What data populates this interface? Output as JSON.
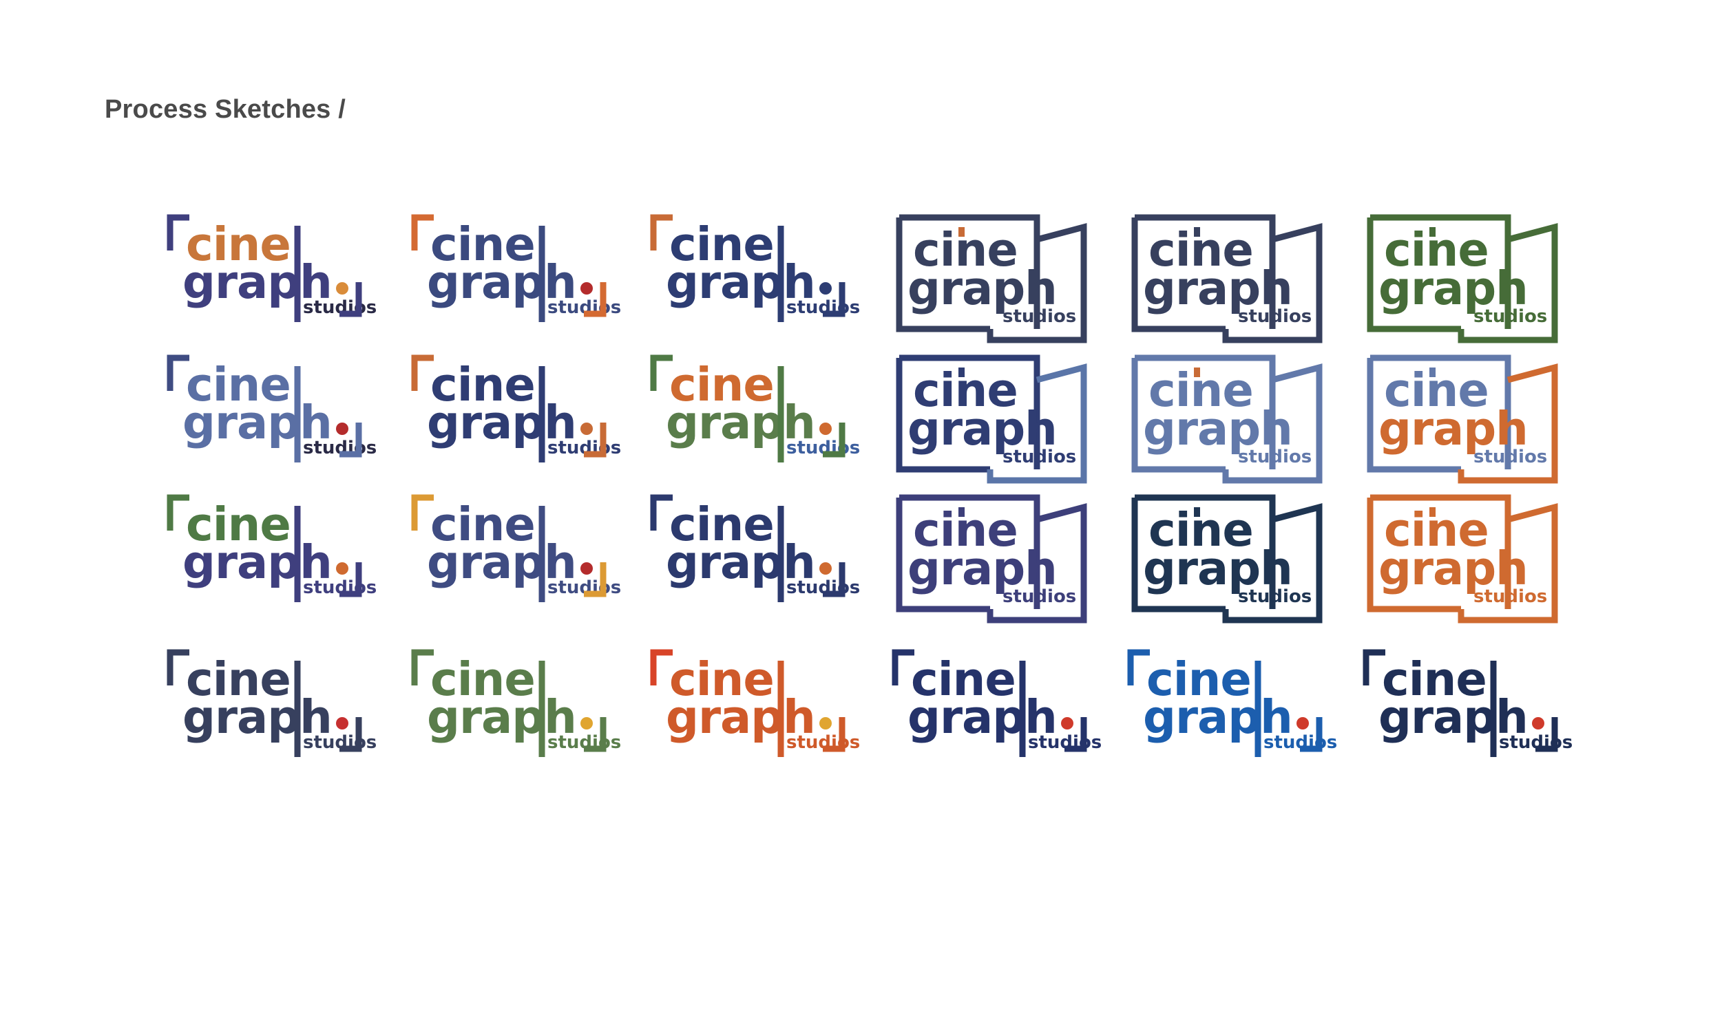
{
  "heading": "Process Sketches /",
  "logo_text": {
    "line1": "cine",
    "line2": "graph",
    "line3": "studios"
  },
  "rows": [
    [
      {
        "style": "bracket",
        "cine": "#c8763a",
        "graph": "#3f3f7e",
        "studios": "#2a2a46",
        "corner": "#3f3f7e",
        "bar": "#3f3f7e",
        "dot": "#d98c3a",
        "accent": "#3f3f7e"
      },
      {
        "style": "bracket",
        "cine": "#3b4a7f",
        "graph": "#3b4a7f",
        "studios": "#3b4a7f",
        "corner": "#d46a32",
        "bar": "#3b4a7f",
        "dot": "#b42c2c",
        "accent": "#d46a32"
      },
      {
        "style": "bracket",
        "cine": "#2d3d73",
        "graph": "#2d3d73",
        "studios": "#2d3d73",
        "corner": "#c86b36",
        "bar": "#2d3d73",
        "dot": "#2d3d73",
        "accent": "#2d3d73"
      },
      {
        "style": "box",
        "cine": "#37405e",
        "graph": "#37405e",
        "studios": "#37405e",
        "box": "#37405e",
        "tab": "#37405e",
        "ibar": "#c86b36"
      },
      {
        "style": "box",
        "cine": "#37405e",
        "graph": "#37405e",
        "studios": "#37405e",
        "box": "#37405e",
        "tab": "#37405e",
        "ibar": "#37405e"
      },
      {
        "style": "box",
        "cine": "#466c38",
        "graph": "#466c38",
        "studios": "#466c38",
        "box": "#466c38",
        "tab": "#466c38",
        "ibar": "#466c38"
      }
    ],
    [
      {
        "style": "bracket",
        "cine": "#5a6fa4",
        "graph": "#5a6fa4",
        "studios": "#2a2a46",
        "corner": "#3f4c82",
        "bar": "#5a6fa4",
        "dot": "#b42c2c",
        "accent": "#5a6fa4"
      },
      {
        "style": "bracket",
        "cine": "#2f3d73",
        "graph": "#2f3d73",
        "studios": "#2f3d73",
        "corner": "#c86b36",
        "bar": "#2f3d73",
        "dot": "#c86b36",
        "accent": "#c86b36"
      },
      {
        "style": "bracket",
        "cine": "#cf6a30",
        "graph": "#5a7d4b",
        "studios": "#3d5f9e",
        "corner": "#4f7a45",
        "bar": "#4f7a45",
        "dot": "#cf6a30",
        "accent": "#4f7a45"
      },
      {
        "style": "box",
        "cine": "#2f3d73",
        "graph": "#2f3d73",
        "studios": "#2f3d73",
        "box": "#2f3d73",
        "tab": "#5a75a8",
        "ibar": "#2f3d73"
      },
      {
        "style": "box",
        "cine": "#6279aa",
        "graph": "#6279aa",
        "studios": "#6279aa",
        "box": "#6279aa",
        "tab": "#6279aa",
        "ibar": "#c86b36"
      },
      {
        "style": "box",
        "cine": "#6279aa",
        "graph": "#cf6a30",
        "studios": "#6279aa",
        "box": "#6279aa",
        "tab": "#cf6a30",
        "ibar": "#6279aa"
      }
    ],
    [
      {
        "style": "bracket",
        "cine": "#4f7a45",
        "graph": "#3f3f7e",
        "studios": "#3f3f7e",
        "corner": "#4f7a45",
        "bar": "#3f3f7e",
        "dot": "#cf6a30",
        "accent": "#3f3f7e"
      },
      {
        "style": "bracket",
        "cine": "#3f4c82",
        "graph": "#3f4c82",
        "studios": "#3f4c82",
        "corner": "#dc9a34",
        "bar": "#3f4c82",
        "dot": "#b42c2c",
        "accent": "#dc9a34"
      },
      {
        "style": "bracket",
        "cine": "#2c3a6e",
        "graph": "#2c3a6e",
        "studios": "#2c3a6e",
        "corner": "#2c3a6e",
        "bar": "#2c3a6e",
        "dot": "#cf6a30",
        "accent": "#2c3a6e"
      },
      {
        "style": "box",
        "cine": "#3d3f7a",
        "graph": "#3d3f7a",
        "studios": "#3d3f7a",
        "box": "#3d3f7a",
        "tab": "#3d3f7a",
        "ibar": "#3d3f7a"
      },
      {
        "style": "box",
        "cine": "#1f3552",
        "graph": "#1f3552",
        "studios": "#1f3552",
        "box": "#1f3552",
        "tab": "#1f3552",
        "ibar": "#1f3552"
      },
      {
        "style": "box",
        "cine": "#cf6a30",
        "graph": "#cf6a30",
        "studios": "#cf6a30",
        "box": "#cf6a30",
        "tab": "#cf6a30",
        "ibar": "#cf6a30"
      }
    ],
    [
      {
        "style": "bracket",
        "cine": "#37405e",
        "graph": "#37405e",
        "studios": "#37405e",
        "corner": "#37405e",
        "bar": "#37405e",
        "dot": "#c63030",
        "accent": "#37405e"
      },
      {
        "style": "bracket",
        "cine": "#5a7d4b",
        "graph": "#5a7d4b",
        "studios": "#5a7d4b",
        "corner": "#5a7d4b",
        "bar": "#5a7d4b",
        "dot": "#e0a530",
        "accent": "#5a7d4b"
      },
      {
        "style": "bracket",
        "cine": "#cf5a2a",
        "graph": "#cf5a2a",
        "studios": "#cf5a2a",
        "corner": "#d84428",
        "bar": "#cf5a2a",
        "dot": "#e0a530",
        "accent": "#cf5a2a"
      },
      {
        "style": "bracket",
        "cine": "#25336a",
        "graph": "#25336a",
        "studios": "#25336a",
        "corner": "#25336a",
        "bar": "#25336a",
        "dot": "#cf3a2a",
        "accent": "#25336a"
      },
      {
        "style": "bracket",
        "cine": "#1c5eae",
        "graph": "#1c5eae",
        "studios": "#1c5eae",
        "corner": "#1c5eae",
        "bar": "#1c5eae",
        "dot": "#cf3a2a",
        "accent": "#1c5eae"
      },
      {
        "style": "bracket",
        "cine": "#1f2f56",
        "graph": "#1f2f56",
        "studios": "#1f2f56",
        "corner": "#1f2f56",
        "bar": "#1f2f56",
        "dot": "#cf3a2a",
        "accent": "#1f2f56"
      }
    ]
  ]
}
